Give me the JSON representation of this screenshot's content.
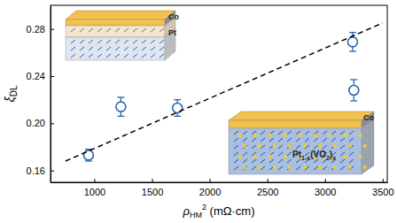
{
  "chart_data": {
    "type": "scatter",
    "x_label": {
      "text": "ρ",
      "sub": "HM",
      "sup": "2",
      "unit": " (mΩ·cm)"
    },
    "y_label": {
      "text": "ξ",
      "sub": "DL"
    },
    "xlim": [
      620,
      3540
    ],
    "xticks": [
      1000,
      1500,
      2000,
      2500,
      3000,
      3500
    ],
    "ylim": [
      0.15,
      0.3
    ],
    "yticks": [
      0.16,
      {
        "value": 0.2,
        "label": "0.20"
      },
      0.24,
      0.28
    ],
    "grid": false,
    "series": [
      {
        "type": "scatter",
        "color": "#2f64b0",
        "marker": "circle",
        "x": [
          950,
          1230,
          1720,
          3240,
          3250
        ],
        "values": [
          0.173,
          0.214,
          0.213,
          0.269,
          0.228
        ],
        "errors": [
          0.005,
          0.008,
          0.007,
          0.008,
          0.009
        ]
      },
      {
        "type": "line",
        "color": "#000000",
        "line_style": "dashed",
        "x": [
          750,
          3500
        ],
        "values": [
          0.168,
          0.285
        ]
      }
    ],
    "insets": [
      {
        "labels": [
          [
            {
              "text": "Co"
            }
          ],
          [
            {
              "text": "Pt"
            }
          ]
        ]
      },
      {
        "labels": [
          [
            {
              "text": "Co"
            }
          ],
          [
            {
              "text": "Pt",
              "sub": "1-x"
            },
            {
              "text": "(VO",
              "sub": "2"
            },
            {
              "text": ")",
              "sub": "x"
            }
          ]
        ]
      }
    ]
  }
}
